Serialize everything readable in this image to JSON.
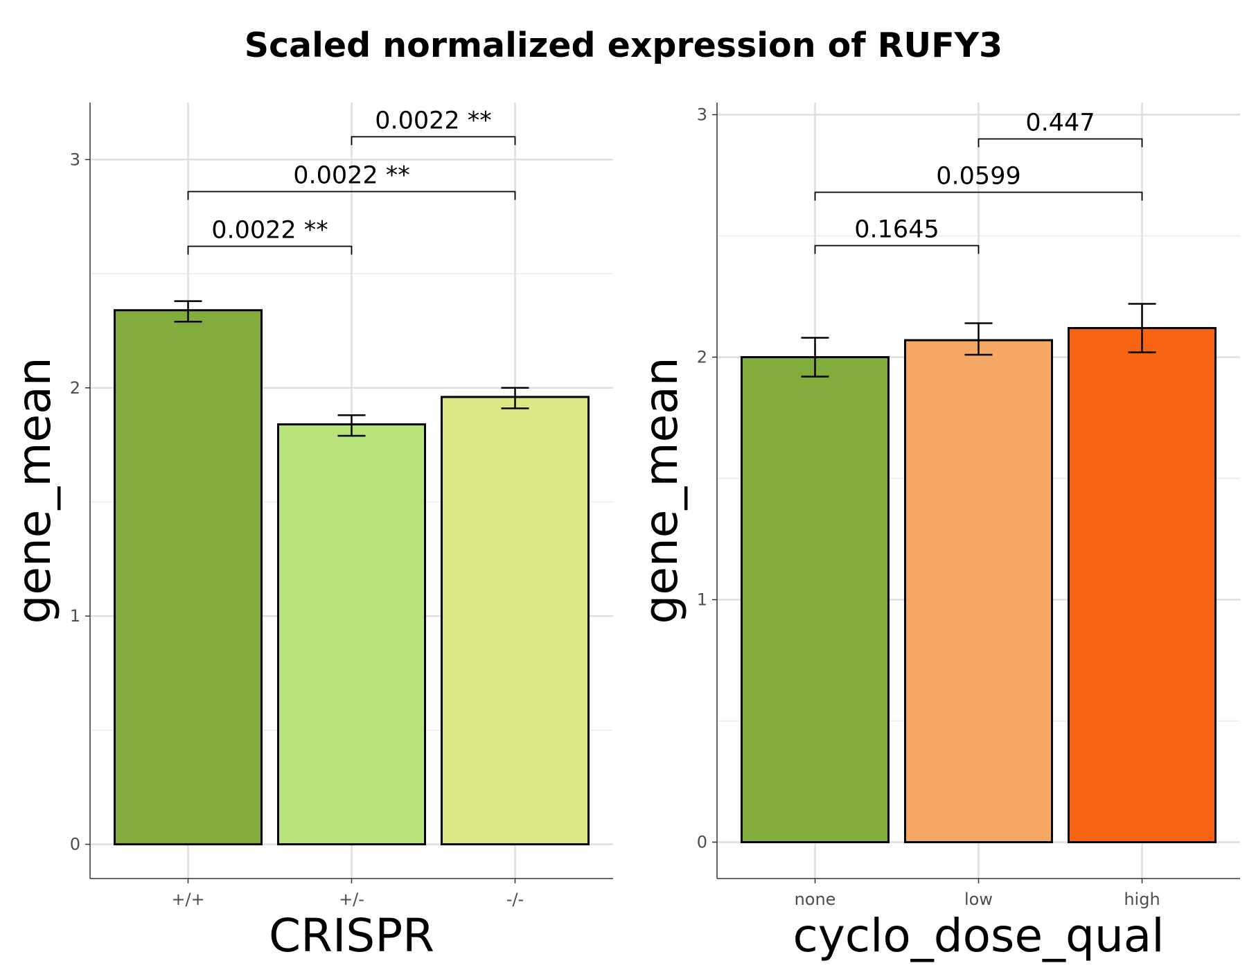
{
  "figure": {
    "title": "Scaled normalized expression of RUFY3"
  },
  "chart_data": [
    {
      "type": "bar",
      "xlabel": "CRISPR",
      "ylabel": "gene_mean",
      "ylim": [
        -0.15,
        3.25
      ],
      "yticks": [
        0,
        1,
        2,
        3
      ],
      "grid": true,
      "legend": "none",
      "categories": [
        "+/+",
        "+/-",
        "-/-"
      ],
      "values": [
        2.34,
        1.84,
        1.96
      ],
      "error_low": [
        2.29,
        1.79,
        1.91
      ],
      "error_high": [
        2.38,
        1.88,
        2.0
      ],
      "colors": [
        "#82ad3c",
        "#b9e37b",
        "#dde884"
      ],
      "comparisons": [
        {
          "groups": [
            0,
            1
          ],
          "label": "0.0022 **",
          "y": 2.62
        },
        {
          "groups": [
            0,
            2
          ],
          "label": "0.0022 **",
          "y": 2.86
        },
        {
          "groups": [
            1,
            2
          ],
          "label": "0.0022 **",
          "y": 3.1
        }
      ]
    },
    {
      "type": "bar",
      "xlabel": "cyclo_dose_qual",
      "ylabel": "gene_mean",
      "ylim": [
        -0.15,
        3.05
      ],
      "yticks": [
        0,
        1,
        2,
        3
      ],
      "grid": true,
      "legend": "none",
      "categories": [
        "none",
        "low",
        "high"
      ],
      "values": [
        2.0,
        2.07,
        2.12
      ],
      "error_low": [
        1.92,
        2.01,
        2.02
      ],
      "error_high": [
        2.08,
        2.14,
        2.22
      ],
      "colors": [
        "#82ad3c",
        "#f5a764",
        "#f76414"
      ],
      "comparisons": [
        {
          "groups": [
            0,
            1
          ],
          "label": "0.1645",
          "y": 2.46
        },
        {
          "groups": [
            0,
            2
          ],
          "label": "0.0599",
          "y": 2.68
        },
        {
          "groups": [
            1,
            2
          ],
          "label": "0.447",
          "y": 2.9
        }
      ]
    }
  ]
}
